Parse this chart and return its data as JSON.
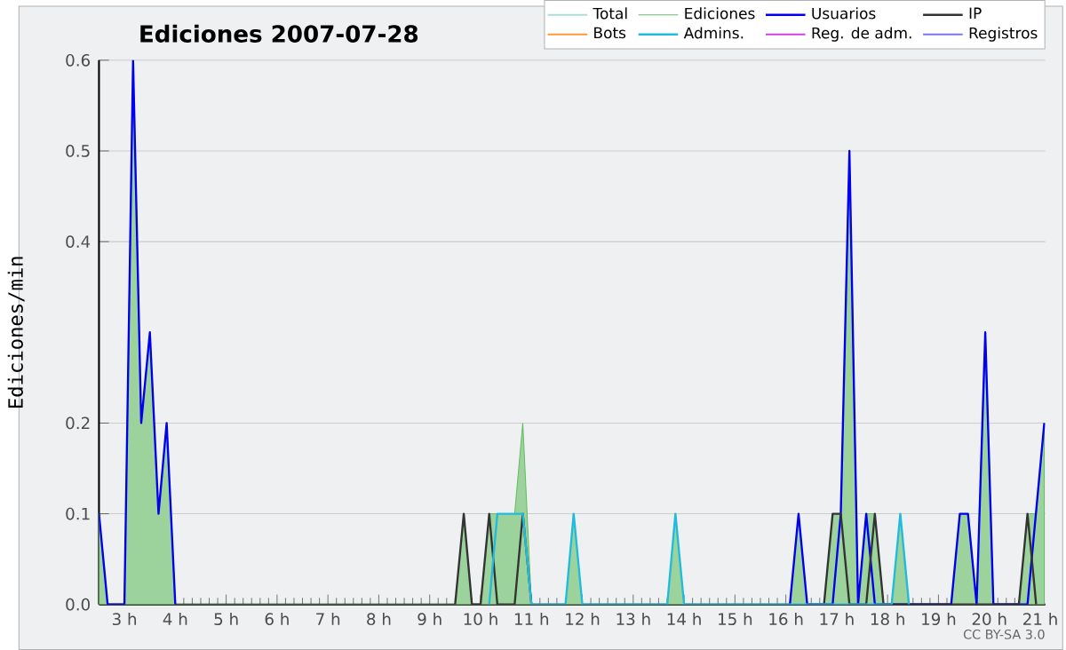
{
  "chart_data": {
    "type": "line",
    "title": "Ediciones  2007-07-28",
    "ylabel": "Ediciones/min",
    "xlim": [
      2.5,
      21.1
    ],
    "xticks": [
      {
        "value": 3,
        "label": "3 h"
      },
      {
        "value": 4,
        "label": "4 h"
      },
      {
        "value": 5,
        "label": "5 h"
      },
      {
        "value": 6,
        "label": "6 h"
      },
      {
        "value": 7,
        "label": "7 h"
      },
      {
        "value": 8,
        "label": "8 h"
      },
      {
        "value": 9,
        "label": "9 h"
      },
      {
        "value": 10,
        "label": "10 h"
      },
      {
        "value": 11,
        "label": "11 h"
      },
      {
        "value": 12,
        "label": "12 h"
      },
      {
        "value": 13,
        "label": "13 h"
      },
      {
        "value": 14,
        "label": "14 h"
      },
      {
        "value": 15,
        "label": "15 h"
      },
      {
        "value": 16,
        "label": "16 h"
      },
      {
        "value": 17,
        "label": "17 h"
      },
      {
        "value": 18,
        "label": "18 h"
      },
      {
        "value": 19,
        "label": "19 h"
      },
      {
        "value": 20,
        "label": "20 h"
      },
      {
        "value": 21,
        "label": "21 h"
      }
    ],
    "ylim": [
      0,
      0.6
    ],
    "yticks": [
      {
        "value": 0,
        "label": "0.0"
      },
      0.1,
      0.2,
      0.4,
      0.5,
      0.6
    ],
    "grid": "y",
    "legend": "top right",
    "annotations": [
      "CC BY-SA 3.0"
    ],
    "series": [
      {
        "name": "Total",
        "color": "#aadddd",
        "values": [
          null
        ]
      },
      {
        "name": "Ediciones",
        "type": "area",
        "color": "#66bb66",
        "x": [
          2.5,
          2.67,
          3.0,
          3.17,
          3.33,
          3.5,
          3.67,
          3.83,
          4.0,
          9.5,
          9.67,
          9.83,
          10.0,
          10.17,
          10.33,
          10.5,
          10.67,
          10.83,
          11.0,
          11.67,
          11.83,
          12.0,
          13.67,
          13.83,
          14.0,
          16.08,
          16.25,
          16.42,
          16.75,
          16.92,
          17.08,
          17.25,
          17.42,
          17.58,
          17.75,
          17.92,
          18.08,
          18.25,
          18.42,
          19.25,
          19.42,
          19.58,
          19.75,
          19.92,
          20.08,
          20.58,
          20.75,
          20.92,
          21.08
        ],
        "values": [
          0.1,
          0,
          0,
          0.6,
          0.2,
          0.3,
          0.1,
          0.2,
          0,
          0,
          0.1,
          0,
          0,
          0.1,
          0.1,
          0.1,
          0.1,
          0.2,
          0,
          0,
          0.1,
          0,
          0,
          0.1,
          0,
          0,
          0.1,
          0,
          0,
          0.1,
          0.1,
          0.5,
          0,
          0.1,
          0.1,
          0,
          0,
          0.1,
          0,
          0,
          0.1,
          0.1,
          0,
          0.3,
          0,
          0,
          0.1,
          0.1,
          0.2
        ]
      },
      {
        "name": "Usuarios",
        "color": "#0000ee",
        "x": [
          2.5,
          2.67,
          3.0,
          3.17,
          3.33,
          3.5,
          3.67,
          3.83,
          4.0,
          16.08,
          16.25,
          16.42,
          16.92,
          17.08,
          17.25,
          17.42,
          17.58,
          17.75,
          19.25,
          19.42,
          19.58,
          19.75,
          19.92,
          20.08,
          20.75,
          21.08
        ],
        "values": [
          0.1,
          0,
          0,
          0.6,
          0.2,
          0.3,
          0.1,
          0.2,
          0,
          0,
          0.1,
          0,
          0,
          0.1,
          0.5,
          0,
          0.1,
          0,
          0,
          0.1,
          0.1,
          0,
          0.3,
          0,
          0,
          0.2
        ]
      },
      {
        "name": "IP",
        "color": "#333333",
        "x": [
          9.5,
          9.67,
          9.83,
          10.0,
          10.17,
          10.33,
          10.67,
          10.83,
          11.0,
          16.75,
          16.92,
          17.08,
          17.25,
          17.58,
          17.75,
          17.92,
          20.58,
          20.75,
          20.92
        ],
        "values": [
          0,
          0.1,
          0,
          0,
          0.1,
          0,
          0,
          0.1,
          0,
          0,
          0.1,
          0.1,
          0,
          0,
          0.1,
          0,
          0,
          0.1,
          0
        ]
      },
      {
        "name": "Bots",
        "color": "#ff9933",
        "values": [
          null
        ]
      },
      {
        "name": "Admins.",
        "color": "#22bbdd",
        "x": [
          10.17,
          10.33,
          10.5,
          10.67,
          10.83,
          11.0,
          11.67,
          11.83,
          12.0,
          13.67,
          13.83,
          14.0,
          18.08,
          18.25,
          18.42
        ],
        "values": [
          0,
          0.1,
          0.1,
          0.1,
          0.1,
          0,
          0,
          0.1,
          0,
          0,
          0.1,
          0,
          0,
          0.1,
          0
        ]
      },
      {
        "name": "Reg. de adm.",
        "color": "#cc44dd",
        "values": [
          null
        ]
      },
      {
        "name": "Registros",
        "color": "#7777ee",
        "values": [
          null
        ]
      }
    ]
  }
}
